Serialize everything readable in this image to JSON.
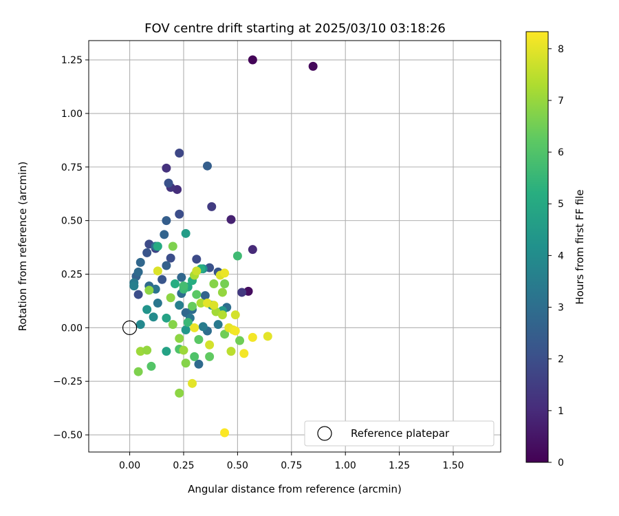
{
  "chart_data": {
    "type": "scatter",
    "title": "FOV centre drift starting at 2025/03/10 03:18:26",
    "xlabel": "Angular distance from reference (arcmin)",
    "ylabel": "Rotation from reference (arcmin)",
    "xlim": [
      -0.19,
      1.72
    ],
    "ylim": [
      -0.58,
      1.34
    ],
    "xticks": [
      0.0,
      0.25,
      0.5,
      0.75,
      1.0,
      1.25,
      1.5
    ],
    "xtick_labels": [
      "0.00",
      "0.25",
      "0.50",
      "0.75",
      "1.00",
      "1.25",
      "1.50"
    ],
    "yticks": [
      -0.5,
      -0.25,
      0.0,
      0.25,
      0.5,
      0.75,
      1.0,
      1.25
    ],
    "ytick_labels": [
      "−0.50",
      "−0.25",
      "0.00",
      "0.25",
      "0.50",
      "0.75",
      "1.00",
      "1.25"
    ],
    "grid": true,
    "colormap": "viridis",
    "colorbar": {
      "label": "Hours from first FF file",
      "range": [
        0,
        8.33
      ],
      "ticks": [
        0,
        1,
        2,
        3,
        4,
        5,
        6,
        7,
        8
      ],
      "tick_labels": [
        "0",
        "1",
        "2",
        "3",
        "4",
        "5",
        "6",
        "7",
        "8"
      ]
    },
    "reference": {
      "name": "Reference platepar",
      "x": 0.0,
      "y": 0.0
    },
    "legend": {
      "position": "lower-right",
      "entries": [
        "Reference platepar"
      ]
    },
    "series": [
      {
        "points": [
          {
            "x": 0.57,
            "y": 1.25,
            "c": 0.1
          },
          {
            "x": 0.85,
            "y": 1.22,
            "c": 0.2
          },
          {
            "x": 0.55,
            "y": 0.17,
            "c": 0.3
          },
          {
            "x": 0.47,
            "y": 0.505,
            "c": 0.8
          },
          {
            "x": 0.57,
            "y": 0.365,
            "c": 1.0
          },
          {
            "x": 0.22,
            "y": 0.645,
            "c": 1.1
          },
          {
            "x": 0.19,
            "y": 0.655,
            "c": 1.3
          },
          {
            "x": 0.17,
            "y": 0.745,
            "c": 1.2
          },
          {
            "x": 0.52,
            "y": 0.165,
            "c": 1.4
          },
          {
            "x": 0.38,
            "y": 0.565,
            "c": 1.5
          },
          {
            "x": 0.23,
            "y": 0.815,
            "c": 1.8
          },
          {
            "x": 0.18,
            "y": 0.675,
            "c": 2.1
          },
          {
            "x": 0.23,
            "y": 0.53,
            "c": 2.0
          },
          {
            "x": 0.12,
            "y": 0.37,
            "c": 1.7
          },
          {
            "x": 0.09,
            "y": 0.39,
            "c": 1.9
          },
          {
            "x": 0.08,
            "y": 0.35,
            "c": 2.2
          },
          {
            "x": 0.19,
            "y": 0.325,
            "c": 2.0
          },
          {
            "x": 0.31,
            "y": 0.32,
            "c": 1.9
          },
          {
            "x": 0.37,
            "y": 0.28,
            "c": 2.1
          },
          {
            "x": 0.41,
            "y": 0.26,
            "c": 2.2
          },
          {
            "x": 0.15,
            "y": 0.225,
            "c": 2.2
          },
          {
            "x": 0.04,
            "y": 0.155,
            "c": 2.0
          },
          {
            "x": 0.36,
            "y": 0.755,
            "c": 2.5
          },
          {
            "x": 0.17,
            "y": 0.5,
            "c": 2.5
          },
          {
            "x": 0.16,
            "y": 0.435,
            "c": 2.7
          },
          {
            "x": 0.05,
            "y": 0.305,
            "c": 2.8
          },
          {
            "x": 0.17,
            "y": 0.29,
            "c": 2.6
          },
          {
            "x": 0.03,
            "y": 0.24,
            "c": 2.6
          },
          {
            "x": 0.04,
            "y": 0.26,
            "c": 2.9
          },
          {
            "x": 0.12,
            "y": 0.38,
            "c": 3.1
          },
          {
            "x": 0.24,
            "y": 0.235,
            "c": 2.8
          },
          {
            "x": 0.3,
            "y": 0.245,
            "c": 2.9
          },
          {
            "x": 0.09,
            "y": 0.195,
            "c": 2.9
          },
          {
            "x": 0.24,
            "y": 0.16,
            "c": 3.0
          },
          {
            "x": 0.35,
            "y": 0.15,
            "c": 2.7
          },
          {
            "x": 0.26,
            "y": 0.07,
            "c": 2.8
          },
          {
            "x": 0.29,
            "y": 0.085,
            "c": 3.0
          },
          {
            "x": 0.45,
            "y": 0.095,
            "c": 3.0
          },
          {
            "x": 0.32,
            "y": -0.17,
            "c": 2.9
          },
          {
            "x": 0.36,
            "y": -0.015,
            "c": 3.0
          },
          {
            "x": 0.02,
            "y": 0.21,
            "c": 3.4
          },
          {
            "x": 0.02,
            "y": 0.195,
            "c": 3.6
          },
          {
            "x": 0.12,
            "y": 0.18,
            "c": 3.2
          },
          {
            "x": 0.13,
            "y": 0.115,
            "c": 3.3
          },
          {
            "x": 0.23,
            "y": 0.105,
            "c": 3.6
          },
          {
            "x": 0.28,
            "y": 0.045,
            "c": 3.3
          },
          {
            "x": 0.34,
            "y": 0.005,
            "c": 3.5
          },
          {
            "x": 0.41,
            "y": 0.015,
            "c": 3.4
          },
          {
            "x": 0.05,
            "y": 0.015,
            "c": 3.9
          },
          {
            "x": 0.08,
            "y": 0.085,
            "c": 4.3
          },
          {
            "x": 0.11,
            "y": 0.05,
            "c": 4.0
          },
          {
            "x": 0.26,
            "y": -0.01,
            "c": 4.4
          },
          {
            "x": 0.43,
            "y": 0.08,
            "c": 4.5
          },
          {
            "x": 0.38,
            "y": 0.105,
            "c": 4.1
          },
          {
            "x": 0.34,
            "y": 0.275,
            "c": 4.2
          },
          {
            "x": 0.26,
            "y": 0.44,
            "c": 4.6
          },
          {
            "x": 0.17,
            "y": -0.11,
            "c": 4.8
          },
          {
            "x": 0.17,
            "y": 0.045,
            "c": 4.8
          },
          {
            "x": 0.27,
            "y": 0.19,
            "c": 5.0
          },
          {
            "x": 0.21,
            "y": 0.205,
            "c": 5.2
          },
          {
            "x": 0.29,
            "y": 0.22,
            "c": 5.2
          },
          {
            "x": 0.13,
            "y": 0.38,
            "c": 5.1
          },
          {
            "x": 0.25,
            "y": 0.18,
            "c": 5.6
          },
          {
            "x": 0.5,
            "y": 0.335,
            "c": 5.7
          },
          {
            "x": 0.33,
            "y": 0.275,
            "c": 5.2
          },
          {
            "x": 0.25,
            "y": 0.195,
            "c": 5.8
          },
          {
            "x": 0.23,
            "y": -0.1,
            "c": 6.0
          },
          {
            "x": 0.27,
            "y": 0.025,
            "c": 5.6
          },
          {
            "x": 0.1,
            "y": -0.18,
            "c": 6.1
          },
          {
            "x": 0.32,
            "y": -0.055,
            "c": 6.2
          },
          {
            "x": 0.3,
            "y": -0.135,
            "c": 6.0
          },
          {
            "x": 0.37,
            "y": -0.135,
            "c": 6.3
          },
          {
            "x": 0.29,
            "y": 0.1,
            "c": 6.4
          },
          {
            "x": 0.31,
            "y": 0.155,
            "c": 6.2
          },
          {
            "x": 0.51,
            "y": -0.06,
            "c": 6.5
          },
          {
            "x": 0.44,
            "y": -0.03,
            "c": 6.5
          },
          {
            "x": 0.19,
            "y": 0.14,
            "c": 6.9
          },
          {
            "x": 0.2,
            "y": 0.015,
            "c": 6.8
          },
          {
            "x": 0.23,
            "y": -0.05,
            "c": 6.9
          },
          {
            "x": 0.26,
            "y": -0.165,
            "c": 6.8
          },
          {
            "x": 0.23,
            "y": -0.305,
            "c": 6.9
          },
          {
            "x": 0.44,
            "y": 0.205,
            "c": 6.6
          },
          {
            "x": 0.39,
            "y": 0.205,
            "c": 6.8
          },
          {
            "x": 0.43,
            "y": 0.165,
            "c": 7.0
          },
          {
            "x": 0.2,
            "y": 0.38,
            "c": 6.7
          },
          {
            "x": 0.05,
            "y": -0.11,
            "c": 7.1
          },
          {
            "x": 0.08,
            "y": -0.105,
            "c": 7.0
          },
          {
            "x": 0.04,
            "y": -0.205,
            "c": 6.7
          },
          {
            "x": 0.09,
            "y": 0.175,
            "c": 6.9
          },
          {
            "x": 0.25,
            "y": -0.105,
            "c": 7.1
          },
          {
            "x": 0.3,
            "y": 0.245,
            "c": 7.3
          },
          {
            "x": 0.33,
            "y": 0.115,
            "c": 7.3
          },
          {
            "x": 0.4,
            "y": 0.075,
            "c": 7.2
          },
          {
            "x": 0.43,
            "y": 0.06,
            "c": 7.4
          },
          {
            "x": 0.47,
            "y": -0.11,
            "c": 7.5
          },
          {
            "x": 0.13,
            "y": 0.265,
            "c": 7.9
          },
          {
            "x": 0.31,
            "y": 0.265,
            "c": 7.7
          },
          {
            "x": 0.42,
            "y": 0.245,
            "c": 7.9
          },
          {
            "x": 0.44,
            "y": 0.255,
            "c": 8.1
          },
          {
            "x": 0.36,
            "y": 0.115,
            "c": 8.0
          },
          {
            "x": 0.39,
            "y": 0.105,
            "c": 7.9
          },
          {
            "x": 0.49,
            "y": 0.06,
            "c": 7.8
          },
          {
            "x": 0.46,
            "y": 0.0,
            "c": 8.0
          },
          {
            "x": 0.48,
            "y": -0.01,
            "c": 8.1
          },
          {
            "x": 0.49,
            "y": -0.015,
            "c": 8.2
          },
          {
            "x": 0.57,
            "y": -0.045,
            "c": 8.2
          },
          {
            "x": 0.64,
            "y": -0.04,
            "c": 8.0
          },
          {
            "x": 0.53,
            "y": -0.12,
            "c": 8.2
          },
          {
            "x": 0.3,
            "y": 0.0,
            "c": 8.1
          },
          {
            "x": 0.29,
            "y": -0.26,
            "c": 8.0
          },
          {
            "x": 0.44,
            "y": -0.49,
            "c": 8.3
          },
          {
            "x": 0.37,
            "y": -0.08,
            "c": 7.8
          }
        ]
      }
    ]
  }
}
